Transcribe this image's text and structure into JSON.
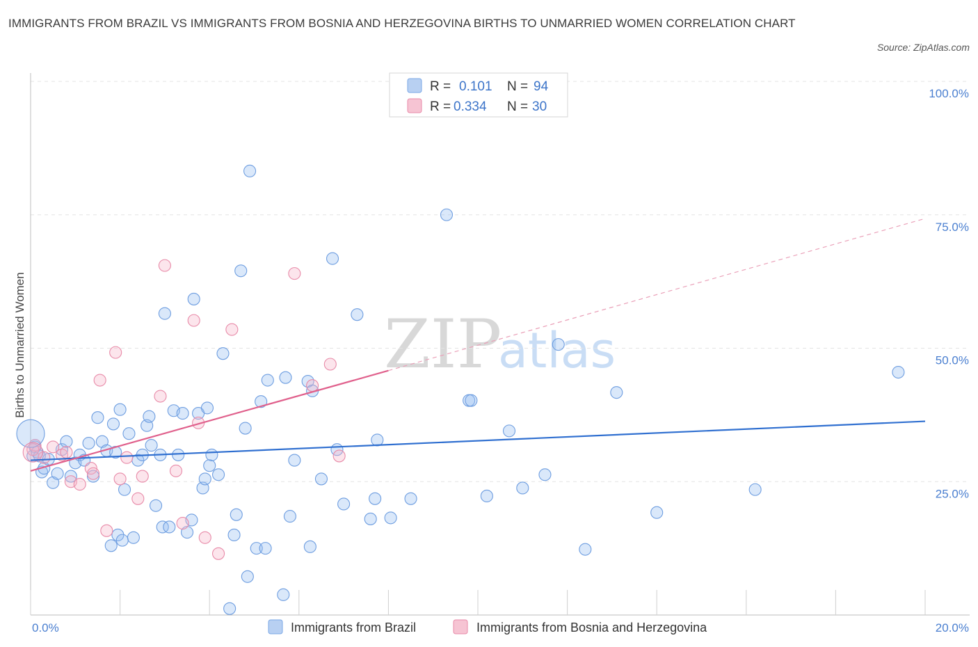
{
  "title": "IMMIGRANTS FROM BRAZIL VS IMMIGRANTS FROM BOSNIA AND HERZEGOVINA BIRTHS TO UNMARRIED WOMEN CORRELATION CHART",
  "source": "Source: ZipAtlas.com",
  "watermark": {
    "zip": "ZIP",
    "atlas": "atlas"
  },
  "chart_data": {
    "type": "scatter",
    "ylabel": "Births to Unmarried Women",
    "xlim": [
      0,
      20
    ],
    "ylim": [
      0,
      100
    ],
    "y_ticks": [
      {
        "value": 25,
        "label": "25.0%"
      },
      {
        "value": 50,
        "label": "50.0%"
      },
      {
        "value": 75,
        "label": "75.0%"
      },
      {
        "value": 100,
        "label": "100.0%"
      }
    ],
    "x_tick_labels": {
      "min": "0.0%",
      "max": "20.0%"
    },
    "legend": {
      "r_label": "R =",
      "n_label": "N =",
      "entries": [
        {
          "name": "Immigrants from Brazil",
          "r": "0.101",
          "n": "94",
          "color": "#7aa7e6",
          "fill": "#b8d0f2"
        },
        {
          "name": "Immigrants from Bosnia and Herzegovina",
          "r": "0.334",
          "n": "30",
          "color": "#e88aa8",
          "fill": "#f6c4d3"
        }
      ]
    },
    "series": [
      {
        "name": "Immigrants from Brazil",
        "color": "#6d9de0",
        "trend": {
          "x": [
            0,
            20
          ],
          "y": [
            29.0,
            36.3
          ]
        },
        "points": [
          [
            0.05,
            29.8
          ],
          [
            0.1,
            31.5
          ],
          [
            0.15,
            30.5
          ],
          [
            0.2,
            29.8
          ],
          [
            0.25,
            26.8
          ],
          [
            0.3,
            27.5
          ],
          [
            0.4,
            29.2
          ],
          [
            0.5,
            24.8
          ],
          [
            0.6,
            26.5
          ],
          [
            0.7,
            31.0
          ],
          [
            0.8,
            32.5
          ],
          [
            0.9,
            26.0
          ],
          [
            1.0,
            28.5
          ],
          [
            1.1,
            30.0
          ],
          [
            1.2,
            29.0
          ],
          [
            1.3,
            32.2
          ],
          [
            1.4,
            26.0
          ],
          [
            1.5,
            37.0
          ],
          [
            1.6,
            32.5
          ],
          [
            1.7,
            30.8
          ],
          [
            1.8,
            13.0
          ],
          [
            1.85,
            35.8
          ],
          [
            1.9,
            30.5
          ],
          [
            1.95,
            15.0
          ],
          [
            2.0,
            38.5
          ],
          [
            2.05,
            14.0
          ],
          [
            2.1,
            23.5
          ],
          [
            2.2,
            34.0
          ],
          [
            2.3,
            14.5
          ],
          [
            2.4,
            29.0
          ],
          [
            2.5,
            30.0
          ],
          [
            2.6,
            35.5
          ],
          [
            2.65,
            37.2
          ],
          [
            2.7,
            31.8
          ],
          [
            2.8,
            20.5
          ],
          [
            2.9,
            30.0
          ],
          [
            2.95,
            16.5
          ],
          [
            3.0,
            56.5
          ],
          [
            3.1,
            16.5
          ],
          [
            3.2,
            38.3
          ],
          [
            3.3,
            30.0
          ],
          [
            3.4,
            37.8
          ],
          [
            3.5,
            15.5
          ],
          [
            3.6,
            17.8
          ],
          [
            3.65,
            59.2
          ],
          [
            3.75,
            37.8
          ],
          [
            3.85,
            23.8
          ],
          [
            3.9,
            25.5
          ],
          [
            3.95,
            38.8
          ],
          [
            4.0,
            28.0
          ],
          [
            4.05,
            30.0
          ],
          [
            4.2,
            26.3
          ],
          [
            4.3,
            49.0
          ],
          [
            4.45,
            1.2
          ],
          [
            4.55,
            15.0
          ],
          [
            4.6,
            18.8
          ],
          [
            4.7,
            64.5
          ],
          [
            4.8,
            35.0
          ],
          [
            4.85,
            7.2
          ],
          [
            4.9,
            83.2
          ],
          [
            5.05,
            12.5
          ],
          [
            5.15,
            40.0
          ],
          [
            5.25,
            12.5
          ],
          [
            5.3,
            44.0
          ],
          [
            5.65,
            3.8
          ],
          [
            5.7,
            44.5
          ],
          [
            5.8,
            18.5
          ],
          [
            5.9,
            29.0
          ],
          [
            6.2,
            43.8
          ],
          [
            6.25,
            12.8
          ],
          [
            6.3,
            42.0
          ],
          [
            6.5,
            25.5
          ],
          [
            6.75,
            66.8
          ],
          [
            6.85,
            31.0
          ],
          [
            7.0,
            20.8
          ],
          [
            7.3,
            56.3
          ],
          [
            7.6,
            18.0
          ],
          [
            7.7,
            21.8
          ],
          [
            7.75,
            32.8
          ],
          [
            8.05,
            18.2
          ],
          [
            8.5,
            21.8
          ],
          [
            9.3,
            75.0
          ],
          [
            9.8,
            40.2
          ],
          [
            9.85,
            40.2
          ],
          [
            10.2,
            22.3
          ],
          [
            10.7,
            34.5
          ],
          [
            11.0,
            23.8
          ],
          [
            11.5,
            26.3
          ],
          [
            11.8,
            50.7
          ],
          [
            12.4,
            12.3
          ],
          [
            13.1,
            41.7
          ],
          [
            14.0,
            19.2
          ],
          [
            16.2,
            23.5
          ],
          [
            19.4,
            45.5
          ]
        ]
      },
      {
        "name": "Immigrants from Bosnia and Herzegovina",
        "color": "#e88aa8",
        "trend": {
          "x": [
            0,
            8.0
          ],
          "y": [
            27.0,
            45.8
          ]
        },
        "trend_dashed": {
          "x": [
            8.0,
            20.0
          ],
          "y": [
            45.8,
            74.3
          ]
        },
        "points": [
          [
            0.1,
            31.8
          ],
          [
            0.3,
            29.5
          ],
          [
            0.5,
            31.5
          ],
          [
            0.7,
            30.0
          ],
          [
            0.8,
            30.5
          ],
          [
            0.9,
            25.0
          ],
          [
            1.1,
            24.5
          ],
          [
            1.35,
            27.5
          ],
          [
            1.4,
            26.5
          ],
          [
            1.55,
            44.0
          ],
          [
            1.7,
            15.8
          ],
          [
            1.9,
            49.2
          ],
          [
            2.0,
            25.5
          ],
          [
            2.15,
            29.5
          ],
          [
            2.4,
            21.8
          ],
          [
            2.5,
            26.0
          ],
          [
            2.9,
            41.0
          ],
          [
            3.0,
            65.5
          ],
          [
            3.25,
            27.0
          ],
          [
            3.4,
            17.2
          ],
          [
            3.65,
            55.2
          ],
          [
            3.75,
            36.0
          ],
          [
            3.9,
            14.5
          ],
          [
            4.2,
            11.5
          ],
          [
            4.5,
            53.5
          ],
          [
            5.9,
            64.0
          ],
          [
            6.3,
            43.0
          ],
          [
            6.7,
            47.0
          ],
          [
            6.9,
            29.8
          ],
          [
            0.05,
            31.0
          ]
        ]
      }
    ]
  }
}
